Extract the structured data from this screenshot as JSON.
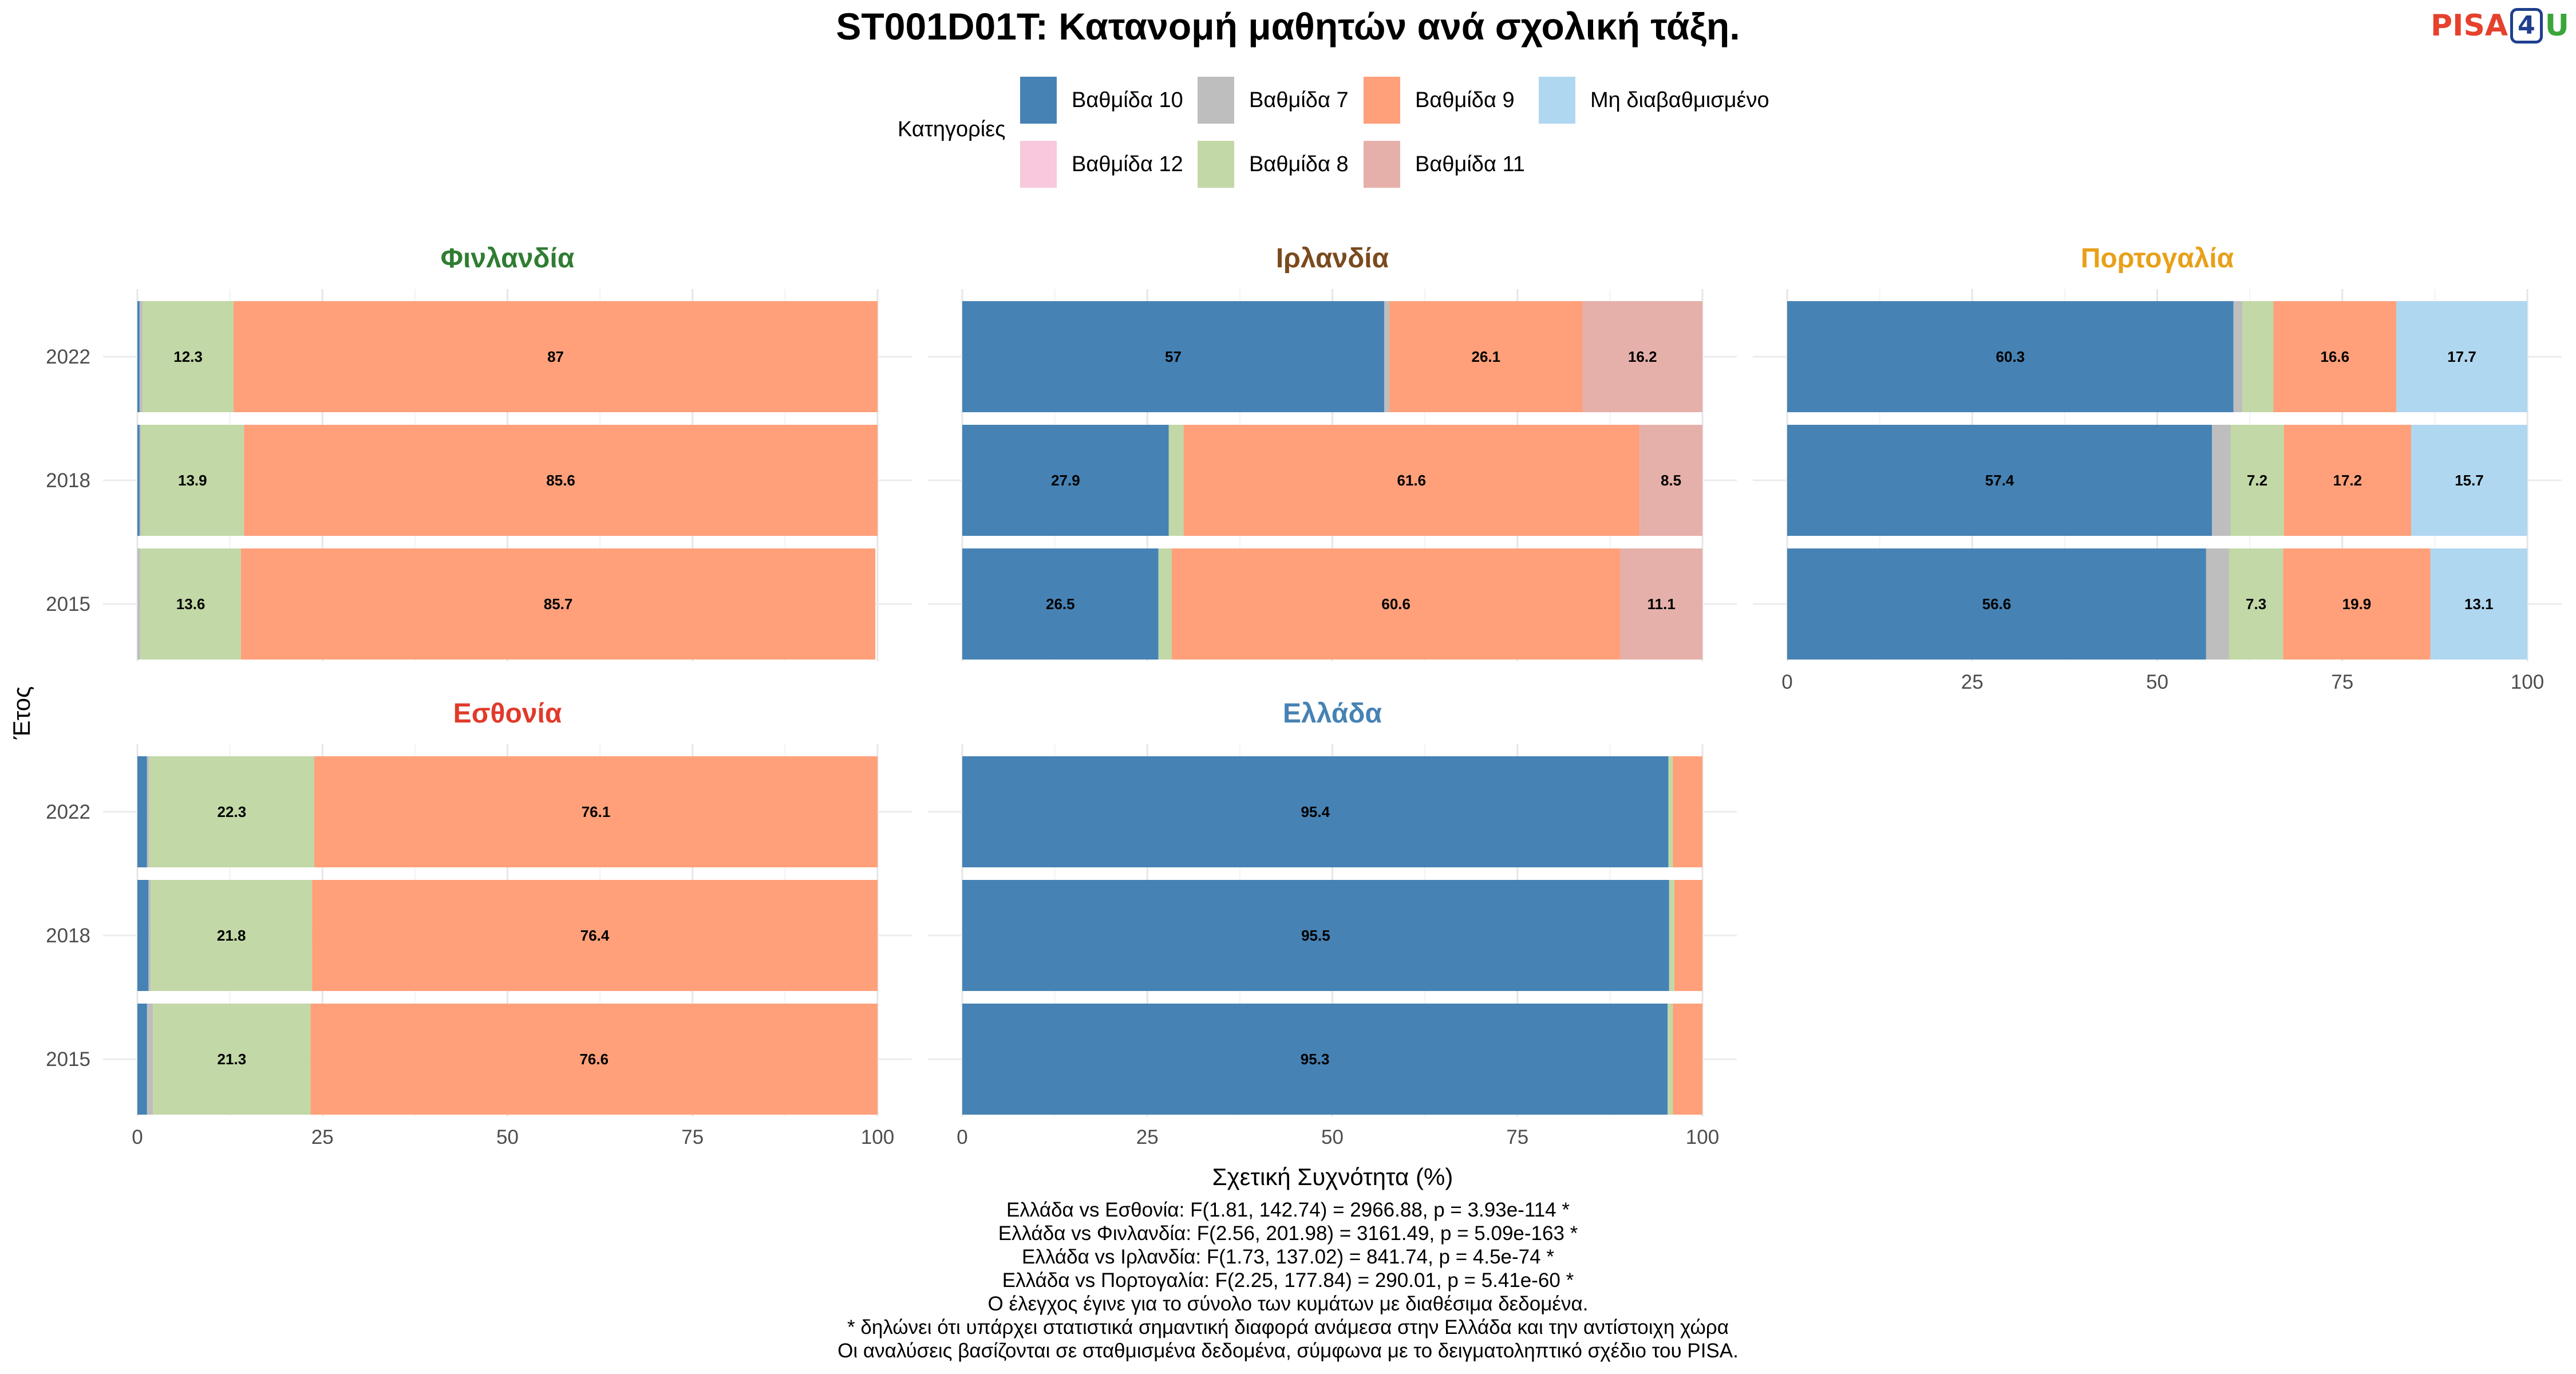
{
  "title": "ST001D01T: Κατανομή μαθητών ανά σχολική τάξη.",
  "logo": {
    "pisa": "PISA",
    "four": "4",
    "u": "U"
  },
  "legend": {
    "title": "Κατηγορίες",
    "items": [
      {
        "label": "Βαθμίδα 10",
        "color": "#4682b4"
      },
      {
        "label": "Βαθμίδα 7",
        "color": "#bebebe"
      },
      {
        "label": "Βαθμίδα 9",
        "color": "#ffa07a"
      },
      {
        "label": "Μη διαβαθμισμένο",
        "color": "#b0d7f0"
      },
      {
        "label": "Βαθμίδα 12",
        "color": "#f8c8dc"
      },
      {
        "label": "Βαθμίδα 8",
        "color": "#c2d8a6"
      },
      {
        "label": "Βαθμίδα 11",
        "color": "#e6b0aa"
      }
    ]
  },
  "chart_data": {
    "type": "bar",
    "orientation": "horizontal",
    "stacked": true,
    "xlabel": "Σχετική Συχνότητα (%)",
    "ylabel": "Έτος",
    "xlim": [
      0,
      100
    ],
    "x_ticks": [
      0,
      25,
      50,
      75,
      100
    ],
    "categories": [
      "2015",
      "2018",
      "2022"
    ],
    "stack_order": [
      "Βαθμίδα 10",
      "Βαθμίδα 7",
      "Βαθμίδα 8",
      "Βαθμίδα 9",
      "Βαθμίδα 11",
      "Βαθμίδα 12",
      "Μη διαβαθμισμένο"
    ],
    "facets": [
      {
        "name": "Φινλανδία",
        "color": "#2f7d32",
        "rows": [
          {
            "year": "2015",
            "values": {
              "Βαθμίδα 7": 0.4,
              "Βαθμίδα 8": 13.6,
              "Βαθμίδα 9": 85.7
            },
            "labels": {
              "Βαθμίδα 8": "13.6",
              "Βαθμίδα 9": "85.7"
            }
          },
          {
            "year": "2018",
            "values": {
              "Βαθμίδα 10": 0.3,
              "Βαθμίδα 7": 0.2,
              "Βαθμίδα 8": 13.9,
              "Βαθμίδα 9": 85.6
            },
            "labels": {
              "Βαθμίδα 8": "13.9",
              "Βαθμίδα 9": "85.6"
            }
          },
          {
            "year": "2022",
            "values": {
              "Βαθμίδα 10": 0.3,
              "Βαθμίδα 7": 0.4,
              "Βαθμίδα 8": 12.3,
              "Βαθμίδα 9": 87.0
            },
            "labels": {
              "Βαθμίδα 8": "12.3",
              "Βαθμίδα 9": "87"
            }
          }
        ]
      },
      {
        "name": "Ιρλανδία",
        "color": "#7a4a1e",
        "rows": [
          {
            "year": "2015",
            "values": {
              "Βαθμίδα 10": 26.5,
              "Βαθμίδα 8": 1.8,
              "Βαθμίδα 9": 60.6,
              "Βαθμίδα 11": 11.1
            },
            "labels": {
              "Βαθμίδα 10": "26.5",
              "Βαθμίδα 9": "60.6",
              "Βαθμίδα 11": "11.1"
            }
          },
          {
            "year": "2018",
            "values": {
              "Βαθμίδα 10": 27.9,
              "Βαθμίδα 8": 2.0,
              "Βαθμίδα 9": 61.6,
              "Βαθμίδα 11": 8.5
            },
            "labels": {
              "Βαθμίδα 10": "27.9",
              "Βαθμίδα 9": "61.6",
              "Βαθμίδα 11": "8.5"
            }
          },
          {
            "year": "2022",
            "values": {
              "Βαθμίδα 10": 57.0,
              "Βαθμίδα 7": 0.7,
              "Βαθμίδα 9": 26.1,
              "Βαθμίδα 11": 16.2
            },
            "labels": {
              "Βαθμίδα 10": "57",
              "Βαθμίδα 9": "26.1",
              "Βαθμίδα 11": "16.2"
            }
          }
        ]
      },
      {
        "name": "Πορτογαλία",
        "color": "#e8a019",
        "rows": [
          {
            "year": "2015",
            "values": {
              "Βαθμίδα 10": 56.6,
              "Βαθμίδα 7": 3.1,
              "Βαθμίδα 8": 7.3,
              "Βαθμίδα 9": 19.9,
              "Μη διαβαθμισμένο": 13.1
            },
            "labels": {
              "Βαθμίδα 10": "56.6",
              "Βαθμίδα 8": "7.3",
              "Βαθμίδα 9": "19.9",
              "Μη διαβαθμισμένο": "13.1"
            }
          },
          {
            "year": "2018",
            "values": {
              "Βαθμίδα 10": 57.4,
              "Βαθμίδα 7": 2.5,
              "Βαθμίδα 8": 7.2,
              "Βαθμίδα 9": 17.2,
              "Μη διαβαθμισμένο": 15.7
            },
            "labels": {
              "Βαθμίδα 10": "57.4",
              "Βαθμίδα 8": "7.2",
              "Βαθμίδα 9": "17.2",
              "Μη διαβαθμισμένο": "15.7"
            }
          },
          {
            "year": "2022",
            "values": {
              "Βαθμίδα 10": 60.3,
              "Βαθμίδα 7": 1.2,
              "Βαθμίδα 8": 4.2,
              "Βαθμίδα 9": 16.6,
              "Μη διαβαθμισμένο": 17.7
            },
            "labels": {
              "Βαθμίδα 10": "60.3",
              "Βαθμίδα 9": "16.6",
              "Μη διαβαθμισμένο": "17.7"
            }
          }
        ]
      },
      {
        "name": "Εσθονία",
        "color": "#e03a2a",
        "rows": [
          {
            "year": "2015",
            "values": {
              "Βαθμίδα 10": 1.3,
              "Βαθμίδα 7": 0.8,
              "Βαθμίδα 8": 21.3,
              "Βαθμίδα 9": 76.6
            },
            "labels": {
              "Βαθμίδα 8": "21.3",
              "Βαθμίδα 9": "76.6"
            }
          },
          {
            "year": "2018",
            "values": {
              "Βαθμίδα 10": 1.5,
              "Βαθμίδα 7": 0.3,
              "Βαθμίδα 8": 21.8,
              "Βαθμίδα 9": 76.4
            },
            "labels": {
              "Βαθμίδα 8": "21.8",
              "Βαθμίδα 9": "76.4"
            }
          },
          {
            "year": "2022",
            "values": {
              "Βαθμίδα 10": 1.3,
              "Βαθμίδα 7": 0.3,
              "Βαθμίδα 8": 22.3,
              "Βαθμίδα 9": 76.1
            },
            "labels": {
              "Βαθμίδα 8": "22.3",
              "Βαθμίδα 9": "76.1"
            }
          }
        ]
      },
      {
        "name": "Ελλάδα",
        "color": "#4682b4",
        "rows": [
          {
            "year": "2015",
            "values": {
              "Βαθμίδα 10": 95.3,
              "Βαθμίδα 8": 0.7,
              "Βαθμίδα 9": 4.0
            },
            "labels": {
              "Βαθμίδα 10": "95.3"
            }
          },
          {
            "year": "2018",
            "values": {
              "Βαθμίδα 10": 95.5,
              "Βαθμίδα 8": 0.7,
              "Βαθμίδα 9": 3.8
            },
            "labels": {
              "Βαθμίδα 10": "95.5"
            }
          },
          {
            "year": "2022",
            "values": {
              "Βαθμίδα 10": 95.4,
              "Βαθμίδα 8": 0.6,
              "Βαθμίδα 9": 4.0
            },
            "labels": {
              "Βαθμίδα 10": "95.4"
            }
          }
        ]
      }
    ]
  },
  "footnotes": [
    "Ελλάδα vs Εσθονία: F(1.81, 142.74) = 2966.88, p = 3.93e-114 *",
    "Ελλάδα vs Φινλανδία: F(2.56, 201.98) = 3161.49, p = 5.09e-163 *",
    "Ελλάδα vs Ιρλανδία: F(1.73, 137.02) = 841.74, p = 4.5e-74 *",
    "Ελλάδα vs Πορτογαλία: F(2.25, 177.84) = 290.01, p = 5.41e-60 *",
    "Ο έλεγχος έγινε για το σύνολο των κυμάτων με διαθέσιμα δεδομένα.",
    "* δηλώνει ότι υπάρχει στατιστικά σημαντική διαφορά ανάμεσα στην Ελλάδα και την αντίστοιχη χώρα",
    "Οι αναλύσεις βασίζονται σε σταθμισμένα δεδομένα, σύμφωνα με το δειγματοληπτικό σχέδιο του PISA."
  ]
}
